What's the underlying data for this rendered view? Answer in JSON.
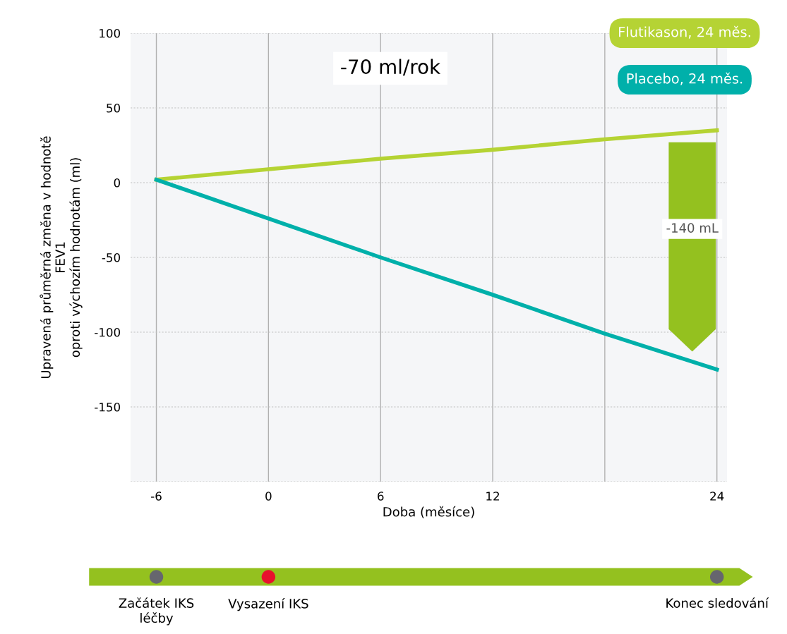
{
  "chart_data": {
    "type": "line",
    "categories": [
      "-6",
      "0",
      "6",
      "12",
      null,
      "24"
    ],
    "series": [
      {
        "name": "Flutikason, 24 měs.",
        "color": "#b5d334",
        "values": [
          2,
          9,
          16,
          22,
          29,
          35
        ]
      },
      {
        "name": "Placebo, 24 měs.",
        "color": "#00b0aa",
        "values": [
          2,
          -24,
          -50,
          -75,
          -101,
          -125
        ]
      }
    ],
    "xlabel": "Doba (měsíce)",
    "ylabel": "Upravená průměrná změna v hodnotě\nFEV1\noproti výchozím hodnotám (ml)",
    "ylim": [
      -200,
      100
    ],
    "yticks": [
      {
        "value": -200,
        "label": null
      },
      -150,
      -100,
      -50,
      0,
      50,
      100
    ],
    "grid": true,
    "marker": "none",
    "line_style": "solid",
    "annotations": [
      "-70 ml/rok",
      "-140 mL",
      "Začátek IKS\nléčby",
      "Vysazení IKS",
      "Konec sledování"
    ]
  }
}
